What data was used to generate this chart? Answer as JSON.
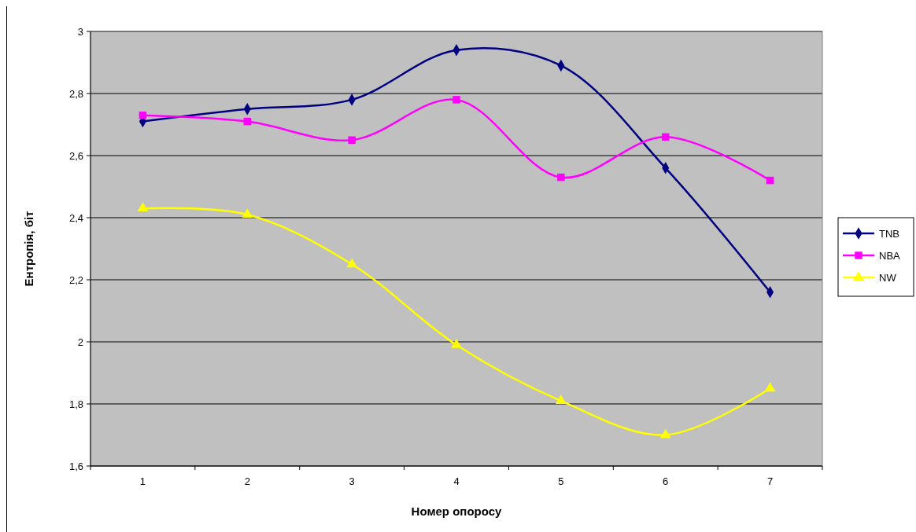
{
  "chart_data": {
    "type": "line",
    "xlabel": "Номер опоросу",
    "ylabel": "Ентропія, біт",
    "categories": [
      "1",
      "2",
      "3",
      "4",
      "5",
      "6",
      "7"
    ],
    "ylim": [
      1.6,
      3
    ],
    "yticks": [
      {
        "value": 1.6,
        "label": "1,6"
      },
      {
        "value": 1.8,
        "label": "1,8"
      },
      2,
      {
        "value": 2.2,
        "label": "2,2"
      },
      {
        "value": 2.4,
        "label": "2,4"
      },
      {
        "value": 2.6,
        "label": "2,6"
      },
      {
        "value": 2.8,
        "label": "2,8"
      },
      3
    ],
    "grid": "y",
    "legend": "right",
    "series": [
      {
        "name": "TNB",
        "color": "#000080",
        "marker": "diamond",
        "values": [
          2.71,
          2.75,
          2.78,
          2.94,
          2.89,
          2.56,
          2.16
        ]
      },
      {
        "name": "NBA",
        "color": "#ff00ff",
        "marker": "square",
        "values": [
          2.73,
          2.71,
          2.65,
          2.78,
          2.53,
          2.66,
          2.52
        ]
      },
      {
        "name": "NW",
        "color": "#ffff00",
        "marker": "triangle",
        "values": [
          2.43,
          2.41,
          2.25,
          1.99,
          1.81,
          1.7,
          1.85
        ]
      }
    ]
  }
}
